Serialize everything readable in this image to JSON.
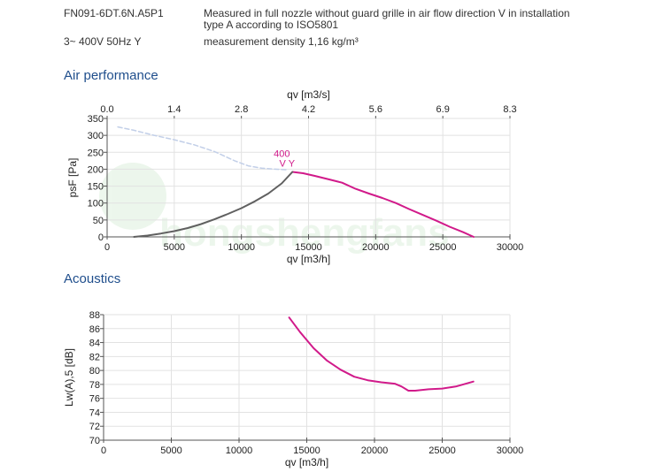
{
  "header": {
    "model": "FN091-6DT.6N.A5P1",
    "supply": "3~ 400V 50Hz Y",
    "description_line1": "Measured in full nozzle without guard grille in air flow direction V in installation",
    "description_line2": "type A according to ISO5801",
    "density": "measurement density 1,16 kg/m³"
  },
  "sections": {
    "air_performance": "Air performance",
    "acoustics": "Acoustics"
  },
  "watermark": {
    "text": "hongshengfans",
    "color": "#3aa835"
  },
  "chart_data": [
    {
      "type": "line",
      "id": "air",
      "xlabel": "qv [m3/h]",
      "ylabel": "psF [Pa]",
      "x2label": "qv [m3/s]",
      "xlim": [
        0,
        30000
      ],
      "ylim": [
        0,
        350
      ],
      "xticks": [
        0,
        5000,
        10000,
        15000,
        20000,
        25000,
        30000
      ],
      "yticks": [
        0,
        50,
        100,
        150,
        200,
        250,
        300,
        350
      ],
      "x2ticks": [
        "0.0",
        "1.4",
        "2.8",
        "4.2",
        "5.6",
        "6.9",
        "8.3"
      ],
      "grid": true,
      "curve_label_top": "400",
      "curve_label_bottom": "V Y",
      "series": [
        {
          "color": "#d11a8a",
          "style": "solid",
          "points": [
            [
              13800,
              192
            ],
            [
              14600,
              188
            ],
            [
              15500,
              180
            ],
            [
              16500,
              170
            ],
            [
              17500,
              160
            ],
            [
              18500,
              142
            ],
            [
              19500,
              128
            ],
            [
              20500,
              115
            ],
            [
              21500,
              100
            ],
            [
              22500,
              82
            ],
            [
              23500,
              65
            ],
            [
              24500,
              48
            ],
            [
              25500,
              30
            ],
            [
              26500,
              14
            ],
            [
              27300,
              0
            ]
          ]
        },
        {
          "color": "#606060",
          "style": "solid",
          "points": [
            [
              2000,
              0
            ],
            [
              3000,
              4
            ],
            [
              4000,
              10
            ],
            [
              5000,
              17
            ],
            [
              6000,
              26
            ],
            [
              7000,
              38
            ],
            [
              8000,
              52
            ],
            [
              9000,
              68
            ],
            [
              10000,
              85
            ],
            [
              11000,
              105
            ],
            [
              12000,
              128
            ],
            [
              13000,
              158
            ],
            [
              13800,
              192
            ]
          ]
        },
        {
          "color": "#c2cfe8",
          "style": "dashed",
          "points": [
            [
              800,
              325
            ],
            [
              2000,
              315
            ],
            [
              3500,
              300
            ],
            [
              5000,
              287
            ],
            [
              6500,
              272
            ],
            [
              8000,
              252
            ],
            [
              9500,
              225
            ],
            [
              10500,
              210
            ],
            [
              11500,
              203
            ],
            [
              12500,
              200
            ],
            [
              13500,
              198
            ]
          ]
        }
      ]
    },
    {
      "type": "line",
      "id": "acoustics",
      "xlabel": "qv [m3/h]",
      "ylabel": "Lw(A),5 [dB]",
      "xlim": [
        0,
        30000
      ],
      "ylim": [
        70,
        88
      ],
      "xticks": [
        0,
        5000,
        10000,
        15000,
        20000,
        25000,
        30000
      ],
      "yticks": [
        70,
        72,
        74,
        76,
        78,
        80,
        82,
        84,
        86,
        88
      ],
      "grid": true,
      "series": [
        {
          "color": "#d11a8a",
          "style": "solid",
          "points": [
            [
              13700,
              87.6
            ],
            [
              14500,
              85.5
            ],
            [
              15500,
              83.2
            ],
            [
              16500,
              81.4
            ],
            [
              17500,
              80.1
            ],
            [
              18500,
              79.1
            ],
            [
              19500,
              78.6
            ],
            [
              20500,
              78.3
            ],
            [
              21500,
              78.1
            ],
            [
              22000,
              77.7
            ],
            [
              22500,
              77.1
            ],
            [
              23000,
              77.1
            ],
            [
              24000,
              77.3
            ],
            [
              25000,
              77.4
            ],
            [
              26000,
              77.7
            ],
            [
              27300,
              78.4
            ]
          ]
        }
      ]
    }
  ]
}
